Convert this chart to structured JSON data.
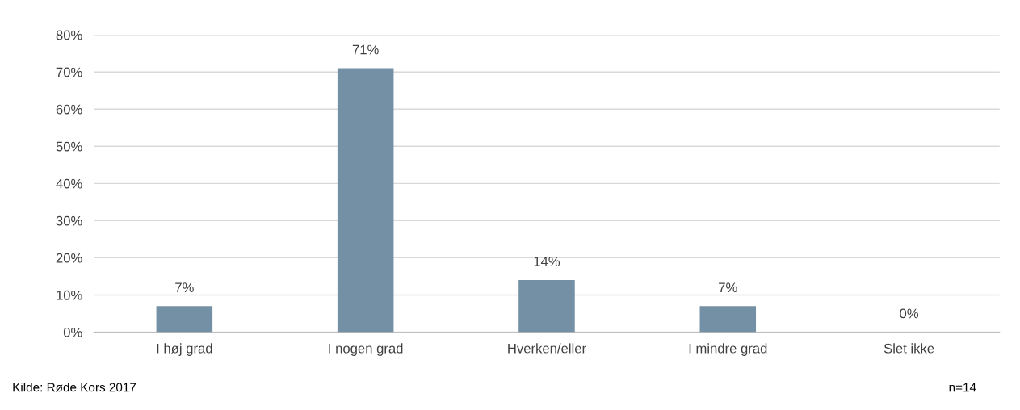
{
  "chart_data": {
    "type": "bar",
    "categories": [
      "I høj grad",
      "I nogen grad",
      "Hverken/eller",
      "I mindre grad",
      "Slet ikke"
    ],
    "values": [
      7,
      71,
      14,
      7,
      0
    ],
    "value_labels": [
      "7%",
      "71%",
      "14%",
      "7%",
      "0%"
    ],
    "color": "#7390a5",
    "ylim": [
      0,
      80
    ],
    "yticks": [
      {
        "value": 0,
        "label": "0%"
      },
      {
        "value": 10,
        "label": "10%"
      },
      {
        "value": 20,
        "label": "20%"
      },
      {
        "value": 30,
        "label": "30%"
      },
      {
        "value": 40,
        "label": "40%"
      },
      {
        "value": 50,
        "label": "50%"
      },
      {
        "value": 60,
        "label": "60%"
      },
      {
        "value": 70,
        "label": "70%"
      },
      {
        "value": 80,
        "label": "80%"
      }
    ],
    "grid": "y",
    "legend": false,
    "annotations": [
      "Kilde: Røde Kors 2017",
      "n=14"
    ]
  }
}
